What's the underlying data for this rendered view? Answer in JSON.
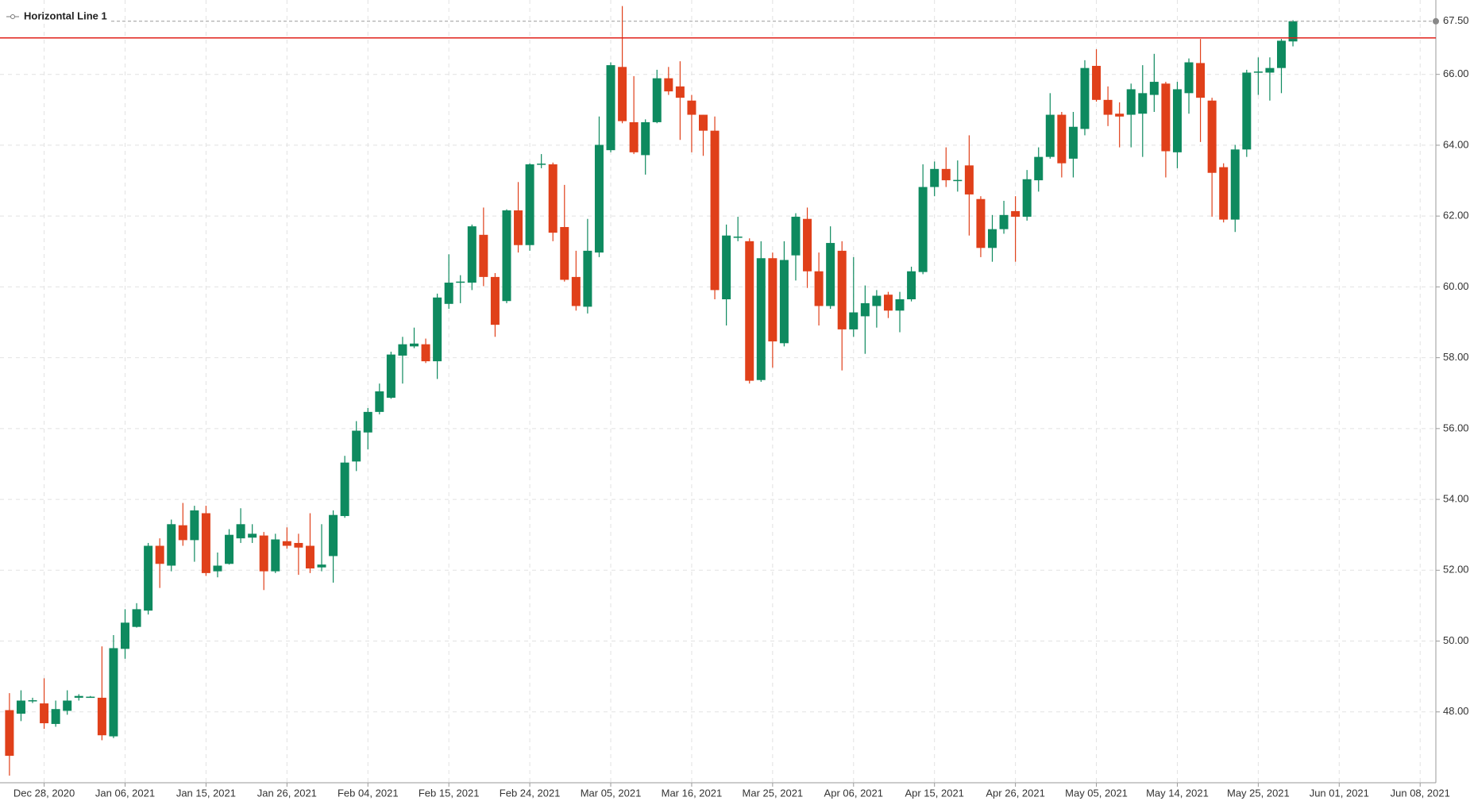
{
  "chart_data": {
    "type": "candlestick",
    "horizontal_line": {
      "label": "Horizontal Line 1",
      "value": 67.03,
      "color": "#e0201a"
    },
    "last_price": {
      "value": 67.5,
      "label": "67.50"
    },
    "up_color": "#0e8a5f",
    "down_color": "#e0401a",
    "grid": true,
    "ylim": [
      46,
      68.1
    ],
    "yticks": [
      {
        "value": 48,
        "label": "48.00"
      },
      {
        "value": 50,
        "label": "50.00"
      },
      {
        "value": 52,
        "label": "52.00"
      },
      {
        "value": 54,
        "label": "54.00"
      },
      {
        "value": 56,
        "label": "56.00"
      },
      {
        "value": 58,
        "label": "58.00"
      },
      {
        "value": 60,
        "label": "60.00"
      },
      {
        "value": 62,
        "label": "62.00"
      },
      {
        "value": 64,
        "label": "64.00"
      },
      {
        "value": 66,
        "label": "66.00"
      }
    ],
    "categories": [
      null,
      null,
      null,
      "Dec 28, 2020",
      null,
      null,
      null,
      null,
      null,
      null,
      "Jan 06, 2021",
      null,
      null,
      null,
      null,
      null,
      null,
      "Jan 15, 2021",
      null,
      null,
      null,
      null,
      null,
      null,
      "Jan 26, 2021",
      null,
      null,
      null,
      null,
      null,
      null,
      "Feb 04, 2021",
      null,
      null,
      null,
      null,
      null,
      null,
      "Feb 15, 2021",
      null,
      null,
      null,
      null,
      null,
      null,
      "Feb 24, 2021",
      null,
      null,
      null,
      null,
      null,
      null,
      "Mar 05, 2021",
      null,
      null,
      null,
      null,
      null,
      null,
      "Mar 16, 2021",
      null,
      null,
      null,
      null,
      null,
      null,
      "Mar 25, 2021",
      null,
      null,
      null,
      null,
      null,
      null,
      "Apr 06, 2021",
      null,
      null,
      null,
      null,
      null,
      null,
      "Apr 15, 2021",
      null,
      null,
      null,
      null,
      null,
      null,
      "Apr 26, 2021",
      null,
      null,
      null,
      null,
      null,
      null,
      "May 05, 2021",
      null,
      null,
      null,
      null,
      null,
      null,
      "May 14, 2021",
      null,
      null,
      null,
      null,
      null,
      null,
      "May 25, 2021",
      null,
      null,
      null,
      null,
      null,
      null,
      "Jun 01, 2021",
      null,
      null,
      null,
      null,
      null,
      null,
      "Jun 08, 2021"
    ],
    "open": [
      48.05,
      47.95,
      48.32,
      48.24,
      47.66,
      48.03,
      48.4,
      48.42,
      48.4,
      47.31,
      49.78,
      50.4,
      50.86,
      52.69,
      52.13,
      53.27,
      52.85,
      53.61,
      51.97,
      52.18,
      52.9,
      52.92,
      52.98,
      51.97,
      52.82,
      52.77,
      52.69,
      52.08,
      52.4,
      53.53,
      55.07,
      55.89,
      56.47,
      56.87,
      58.06,
      58.32,
      58.38,
      57.9,
      59.52,
      60.12,
      60.12,
      61.47,
      60.28,
      59.6,
      62.16,
      61.18,
      63.46,
      63.46,
      61.69,
      60.28,
      59.44,
      60.97,
      63.86,
      66.21,
      64.65,
      63.72,
      64.65,
      65.89,
      65.66,
      65.26,
      64.86,
      64.41,
      59.65,
      61.4,
      61.29,
      57.37,
      60.81,
      58.41,
      60.89,
      61.92,
      60.44,
      59.46,
      61.02,
      58.8,
      59.17,
      59.46,
      59.78,
      59.33,
      59.65,
      60.42,
      62.82,
      63.33,
      63.0,
      63.43,
      62.48,
      61.1,
      61.63,
      62.14,
      61.98,
      63.01,
      63.67,
      64.86,
      63.62,
      64.46,
      66.24,
      65.28,
      64.89,
      64.86,
      64.89,
      65.42,
      65.74,
      63.8,
      65.47,
      66.32,
      65.26,
      63.38,
      61.9,
      63.88,
      66.05,
      66.05,
      66.18,
      66.93,
      null,
      null,
      null,
      null,
      null,
      null,
      null,
      null,
      null,
      null,
      null
    ],
    "high": [
      48.53,
      48.61,
      48.4,
      48.95,
      48.32,
      48.61,
      48.5,
      48.45,
      49.85,
      50.17,
      50.9,
      51.07,
      52.77,
      52.9,
      53.43,
      53.9,
      53.82,
      53.82,
      52.5,
      53.16,
      53.75,
      53.3,
      53.08,
      53.03,
      53.21,
      53.03,
      53.61,
      53.3,
      53.69,
      55.23,
      56.21,
      56.58,
      57.27,
      58.17,
      58.59,
      58.85,
      58.54,
      59.81,
      60.92,
      60.33,
      61.76,
      62.24,
      60.39,
      62.19,
      62.96,
      63.49,
      63.75,
      63.51,
      62.88,
      61.02,
      61.92,
      64.81,
      66.34,
      67.93,
      65.95,
      64.73,
      66.13,
      66.21,
      66.37,
      65.42,
      64.86,
      64.81,
      61.76,
      61.98,
      61.37,
      61.29,
      60.97,
      61.29,
      62.08,
      62.24,
      60.97,
      61.71,
      61.29,
      60.84,
      60.04,
      59.91,
      59.86,
      59.86,
      60.57,
      63.46,
      63.54,
      63.94,
      63.57,
      64.28,
      62.56,
      62.03,
      62.43,
      62.56,
      63.3,
      63.94,
      65.47,
      64.94,
      64.94,
      66.4,
      66.71,
      65.66,
      65.21,
      65.74,
      66.26,
      66.58,
      65.79,
      65.79,
      66.45,
      67.0,
      65.34,
      63.49,
      64.01,
      66.13,
      66.48,
      66.48,
      67.0,
      67.53,
      null,
      null,
      null,
      null,
      null,
      null,
      null,
      null,
      null,
      null,
      null
    ],
    "low": [
      46.2,
      47.74,
      48.25,
      47.52,
      47.58,
      47.92,
      48.32,
      48.4,
      47.2,
      47.26,
      49.5,
      50.38,
      50.75,
      51.5,
      51.97,
      52.69,
      52.24,
      51.84,
      51.8,
      52.16,
      52.77,
      52.77,
      51.44,
      51.92,
      52.61,
      51.87,
      51.92,
      51.97,
      51.65,
      53.48,
      54.8,
      55.41,
      56.4,
      56.84,
      57.27,
      58.27,
      57.85,
      57.4,
      59.38,
      59.54,
      59.91,
      60.02,
      58.59,
      59.54,
      60.97,
      61.02,
      63.35,
      61.29,
      60.15,
      59.33,
      59.25,
      60.84,
      63.8,
      64.62,
      63.75,
      63.17,
      64.62,
      65.42,
      64.15,
      63.8,
      63.7,
      59.65,
      58.91,
      61.29,
      57.27,
      57.32,
      57.72,
      58.32,
      60.18,
      59.97,
      58.91,
      59.38,
      57.64,
      58.59,
      58.11,
      58.85,
      59.12,
      58.72,
      59.59,
      60.36,
      62.56,
      62.82,
      62.69,
      61.45,
      60.84,
      60.71,
      61.5,
      60.71,
      61.87,
      62.69,
      63.62,
      63.09,
      63.09,
      64.28,
      65.23,
      64.54,
      63.94,
      63.94,
      63.67,
      64.94,
      63.09,
      63.35,
      64.89,
      64.09,
      61.98,
      61.82,
      61.55,
      63.67,
      65.42,
      65.26,
      65.47,
      66.79,
      null,
      null,
      null,
      null,
      null,
      null,
      null,
      null,
      null,
      null,
      null
    ],
    "close": [
      46.76,
      48.32,
      48.33,
      47.68,
      48.08,
      48.32,
      48.45,
      48.43,
      47.34,
      49.8,
      50.52,
      50.9,
      52.69,
      52.18,
      53.3,
      52.85,
      53.69,
      51.92,
      52.13,
      53.0,
      53.3,
      53.03,
      51.97,
      52.87,
      52.69,
      52.64,
      52.05,
      52.16,
      53.56,
      55.04,
      55.94,
      56.47,
      57.05,
      58.09,
      58.38,
      58.4,
      57.9,
      59.7,
      60.12,
      60.15,
      61.71,
      60.28,
      58.93,
      62.16,
      61.18,
      63.46,
      63.48,
      61.53,
      60.2,
      59.46,
      61.02,
      64.01,
      66.26,
      64.68,
      63.8,
      64.65,
      65.89,
      65.52,
      65.34,
      64.86,
      64.41,
      59.91,
      61.45,
      61.42,
      57.35,
      60.81,
      58.46,
      60.76,
      61.98,
      60.44,
      59.46,
      61.24,
      58.8,
      59.28,
      59.54,
      59.75,
      59.33,
      59.65,
      60.44,
      62.82,
      63.33,
      63.01,
      63.02,
      62.61,
      61.1,
      61.63,
      62.03,
      61.98,
      63.04,
      63.67,
      64.86,
      63.49,
      64.52,
      66.18,
      65.28,
      64.86,
      64.81,
      65.58,
      65.47,
      65.79,
      63.83,
      65.58,
      66.34,
      65.34,
      63.22,
      61.9,
      63.88,
      66.05,
      66.08,
      66.18,
      66.95,
      67.5,
      null,
      null,
      null,
      null,
      null,
      null,
      null,
      null,
      null,
      null,
      null
    ]
  }
}
